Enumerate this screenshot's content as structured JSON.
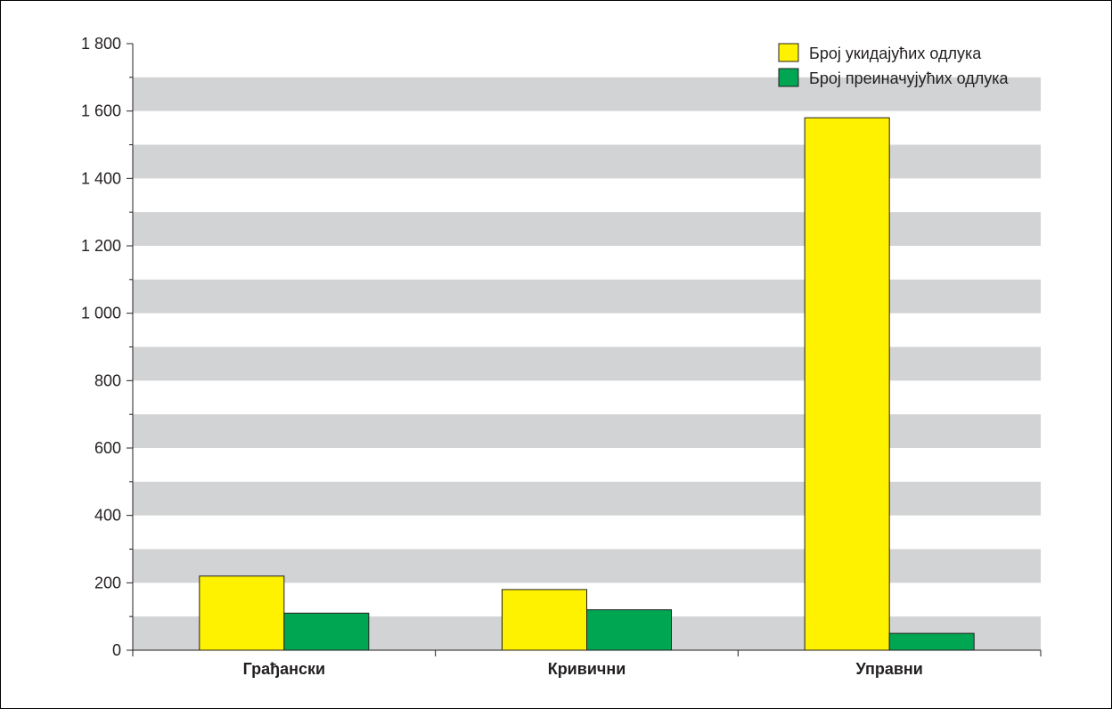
{
  "chart_data": {
    "type": "bar",
    "categories": [
      "Грађански",
      "Кривични",
      "Управни"
    ],
    "series": [
      {
        "name": "Број укидајућих одлука",
        "color": "#fff200",
        "values": [
          220,
          180,
          1580
        ]
      },
      {
        "name": "Број преиначујућих одлука",
        "color": "#00a651",
        "values": [
          110,
          120,
          50
        ]
      }
    ],
    "ylim": [
      0,
      1800
    ],
    "y_ticks": [
      0,
      200,
      400,
      600,
      800,
      1000,
      1200,
      1400,
      1600,
      1800
    ],
    "y_tick_labels": [
      "0",
      "200",
      "400",
      "600",
      "800",
      "1 000",
      "1 200",
      "1 400",
      "1 600",
      "1 800"
    ],
    "grid": "alternating horizontal bands every 100",
    "band_color": "#d1d3d4",
    "legend_position": "top-right"
  }
}
